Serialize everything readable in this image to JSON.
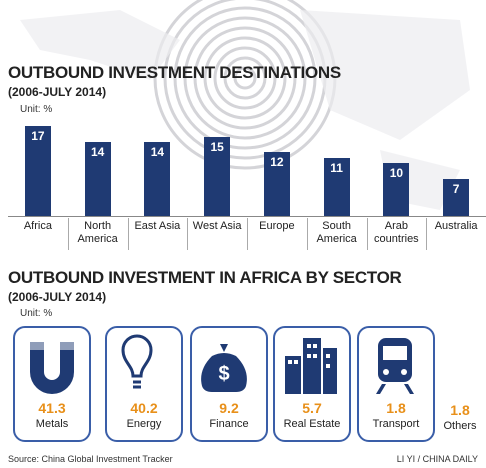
{
  "chart_data": [
    {
      "type": "bar",
      "title": "OUTBOUND INVESTMENT DESTINATIONS",
      "subtitle": "(2006-JULY 2014)",
      "unit": "Unit: %",
      "categories": [
        "Africa",
        "North America",
        "East Asia",
        "West Asia",
        "Europe",
        "South America",
        "Arab countries",
        "Australia"
      ],
      "values": [
        17,
        14,
        14,
        15,
        12,
        11,
        10,
        7
      ],
      "color": "#1f3a73"
    },
    {
      "type": "pictogram",
      "title": "OUTBOUND INVESTMENT IN AFRICA BY SECTOR",
      "subtitle": "(2006-JULY 2014)",
      "unit": "Unit: %",
      "categories": [
        "Metals",
        "Energy",
        "Finance",
        "Real Estate",
        "Transport",
        "Others"
      ],
      "values": [
        41.3,
        40.2,
        9.2,
        5.7,
        1.8,
        1.8
      ],
      "color": "#e8901a"
    }
  ],
  "source": "Source: China Global Investment Tracker",
  "credit": "LI YI / CHINA DAILY"
}
